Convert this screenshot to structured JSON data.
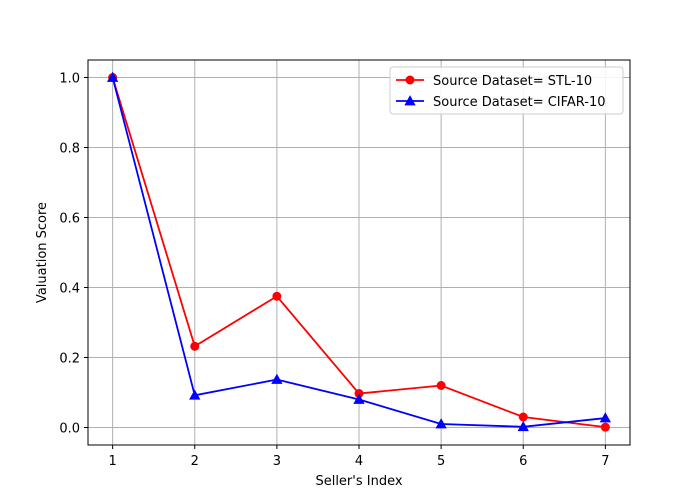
{
  "chart_data": {
    "type": "line",
    "title": "",
    "xlabel": "Seller's Index",
    "ylabel": "Valuation Score",
    "x": [
      1,
      2,
      3,
      4,
      5,
      6,
      7
    ],
    "xlim": [
      0.7,
      7.3
    ],
    "ylim": [
      -0.05,
      1.05
    ],
    "xticks": [
      "1",
      "2",
      "3",
      "4",
      "5",
      "6",
      "7"
    ],
    "yticks": [
      "0.0",
      "0.2",
      "0.4",
      "0.6",
      "0.8",
      "1.0"
    ],
    "grid": true,
    "legend_position": "top-right",
    "series": [
      {
        "name": "Source Dataset= STL-10",
        "color": "#ff0000",
        "marker": "circle",
        "values": [
          1.0,
          0.232,
          0.375,
          0.097,
          0.12,
          0.03,
          0.001
        ]
      },
      {
        "name": "Source Dataset= CIFAR-10",
        "color": "#0000ff",
        "marker": "triangle",
        "values": [
          1.0,
          0.092,
          0.137,
          0.08,
          0.01,
          0.002,
          0.027
        ]
      }
    ]
  }
}
